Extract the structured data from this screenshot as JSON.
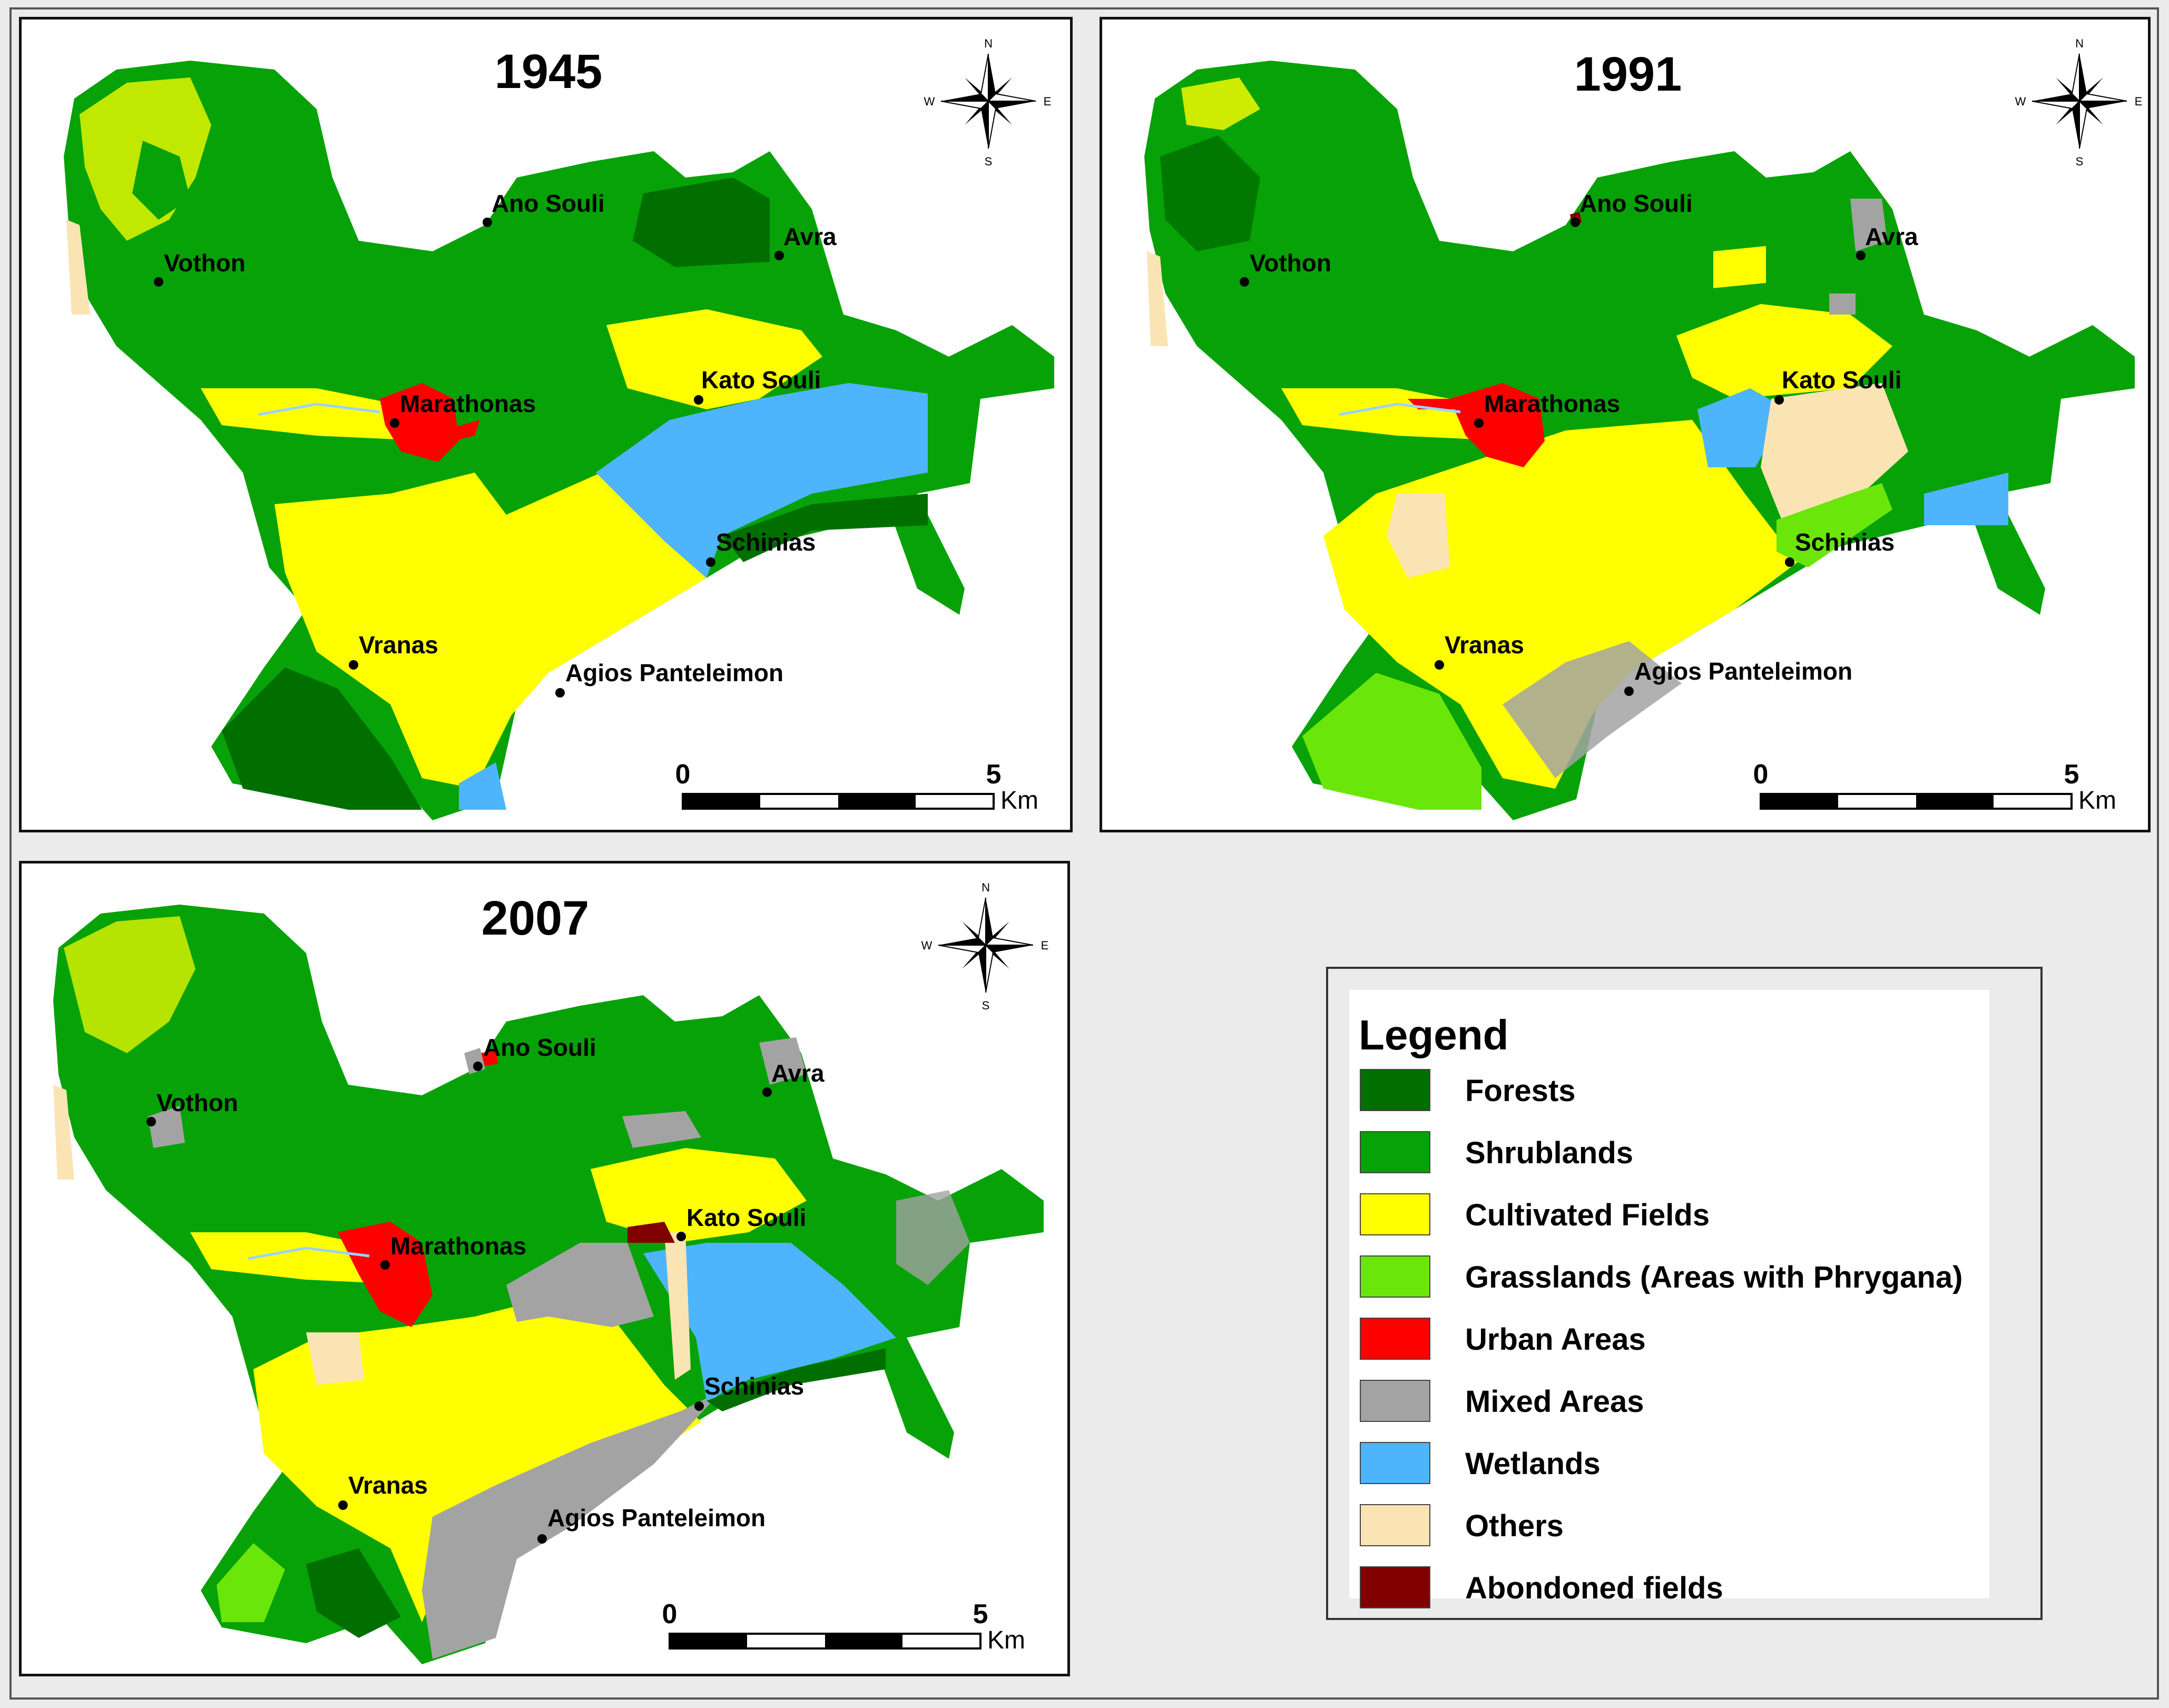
{
  "maps": [
    {
      "year": "1945",
      "places": {
        "ano_souli": "Ano Souli",
        "avra": "Avra",
        "vothon": "Vothon",
        "kato_souli": "Kato Souli",
        "marathonas": "Marathonas",
        "schinias": "Schinias",
        "vranas": "Vranas",
        "agios_panteleimon": "Agios Panteleimon"
      },
      "scale": {
        "zero": "0",
        "max": "5",
        "unit": "Km"
      },
      "compass": {
        "n": "N",
        "s": "S",
        "e": "E",
        "w": "W"
      }
    },
    {
      "year": "1991",
      "places": {
        "ano_souli": "Ano Souli",
        "avra": "Avra",
        "vothon": "Vothon",
        "kato_souli": "Kato Souli",
        "marathonas": "Marathonas",
        "schinias": "Schinias",
        "vranas": "Vranas",
        "agios_panteleimon": "Agios Panteleimon"
      },
      "scale": {
        "zero": "0",
        "max": "5",
        "unit": "Km"
      },
      "compass": {
        "n": "N",
        "s": "S",
        "e": "E",
        "w": "W"
      }
    },
    {
      "year": "2007",
      "places": {
        "ano_souli": "Ano Souli",
        "avra": "Avra",
        "vothon": "Vothon",
        "kato_souli": "Kato Souli",
        "marathonas": "Marathonas",
        "schinias": "Schinias",
        "vranas": "Vranas",
        "agios_panteleimon": "Agios Panteleimon"
      },
      "scale": {
        "zero": "0",
        "max": "5",
        "unit": "Km"
      },
      "compass": {
        "n": "N",
        "s": "S",
        "e": "E",
        "w": "W"
      }
    }
  ],
  "legend": {
    "title": "Legend",
    "items": [
      {
        "label": "Forests",
        "color": "#006f00"
      },
      {
        "label": "Shrublands",
        "color": "#07a207"
      },
      {
        "label": "Cultivated Fields",
        "color": "#ffff00"
      },
      {
        "label": "Grasslands (Areas with Phrygana)",
        "color": "#6be60a"
      },
      {
        "label": "Urban Areas",
        "color": "#ff0000"
      },
      {
        "label": "Mixed Areas",
        "color": "#a3a3a3"
      },
      {
        "label": "Wetlands",
        "color": "#4eb4fb"
      },
      {
        "label": "Others",
        "color": "#fbe4b4"
      },
      {
        "label": "Abondoned fields",
        "color": "#800000"
      }
    ]
  }
}
